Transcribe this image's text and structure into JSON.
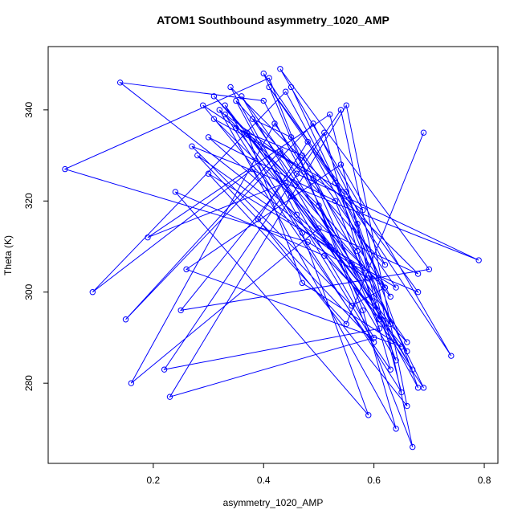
{
  "chart_data": {
    "type": "line",
    "title": "ATOM1 Southbound asymmetry_1020_AMP",
    "x_label": "asymmetry_1020_AMP",
    "y_label": "Theta (K)",
    "xlim": [
      0.0095,
      0.8247
    ],
    "ylim": [
      262.4,
      353.9
    ],
    "xticks": [
      0.2,
      0.4,
      0.6,
      0.8
    ],
    "yticks": [
      280,
      300,
      320,
      340
    ],
    "markers": true,
    "series": [
      {
        "name": "asymmetry_1020_AMP",
        "color": "#0000ff",
        "x": [
          0.45,
          0.62,
          0.31,
          0.55,
          0.68,
          0.4,
          0.14,
          0.52,
          0.6,
          0.35,
          0.47,
          0.66,
          0.29,
          0.58,
          0.43,
          0.7,
          0.25,
          0.51,
          0.63,
          0.38,
          0.09,
          0.44,
          0.57,
          0.65,
          0.33,
          0.49,
          0.61,
          0.22,
          0.54,
          0.67,
          0.41,
          0.04,
          0.48,
          0.59,
          0.3,
          0.53,
          0.64,
          0.36,
          0.46,
          0.79,
          0.27,
          0.56,
          0.62,
          0.42,
          0.16,
          0.5,
          0.68,
          0.34,
          0.45,
          0.6,
          0.23,
          0.55,
          0.66,
          0.39,
          0.48,
          0.63,
          0.31,
          0.57,
          0.69,
          0.44,
          0.19,
          0.52,
          0.61,
          0.37,
          0.47,
          0.65,
          0.26,
          0.54,
          0.74,
          0.4,
          0.58,
          0.64,
          0.32,
          0.5,
          0.67,
          0.43,
          0.15,
          0.49,
          0.62,
          0.35,
          0.46,
          0.6,
          0.28,
          0.56,
          0.68,
          0.41,
          0.53,
          0.63,
          0.33,
          0.47,
          0.59,
          0.24,
          0.51,
          0.66,
          0.38,
          0.45,
          0.64,
          0.3,
          0.55,
          0.69
        ],
        "values": [
          345,
          301,
          338,
          322,
          279,
          342,
          346,
          310,
          298,
          336,
          330,
          287,
          341,
          318,
          349,
          305,
          296,
          335,
          283,
          327,
          300,
          344,
          315,
          278,
          339,
          325,
          292,
          283,
          340,
          266,
          347,
          327,
          311,
          303,
          334,
          320,
          285,
          343,
          326,
          307,
          332,
          297,
          301,
          337,
          280,
          314,
          304,
          345,
          321,
          290,
          277,
          341,
          275,
          316,
          333,
          299,
          343,
          309,
          279,
          324,
          312,
          339,
          294,
          335,
          302,
          288,
          305,
          328,
          286,
          348,
          296,
          270,
          340,
          319,
          283,
          331,
          294,
          337,
          306,
          342,
          317,
          289,
          330,
          306,
          300,
          345,
          324,
          293,
          341,
          313,
          273,
          322,
          308,
          289,
          338,
          334,
          301,
          326,
          293,
          335
        ]
      }
    ]
  }
}
